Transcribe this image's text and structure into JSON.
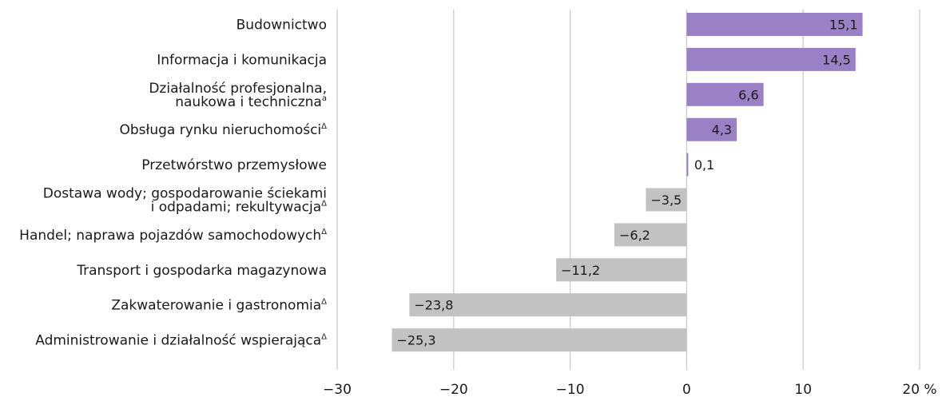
{
  "chart_data": {
    "type": "bar",
    "orientation": "horizontal",
    "categories": [
      {
        "lines": [
          "Budownictwo"
        ],
        "sup": ""
      },
      {
        "lines": [
          "Informacja i komunikacja"
        ],
        "sup": ""
      },
      {
        "lines": [
          "Działalność profesjonalna,",
          "naukowa i techniczna"
        ],
        "sup": "a"
      },
      {
        "lines": [
          "Obsługa rynku nieruchomości"
        ],
        "sup": "Δ"
      },
      {
        "lines": [
          "Przetwórstwo przemysłowe"
        ],
        "sup": ""
      },
      {
        "lines": [
          "Dostawa wody; gospodarowanie ściekami",
          "i odpadami; rekultywacja"
        ],
        "sup": "Δ"
      },
      {
        "lines": [
          "Handel; naprawa pojazdów samochodowych"
        ],
        "sup": "Δ"
      },
      {
        "lines": [
          "Transport i gospodarka magazynowa"
        ],
        "sup": ""
      },
      {
        "lines": [
          "Zakwaterowanie i gastronomia"
        ],
        "sup": "Δ"
      },
      {
        "lines": [
          "Administrowanie i działalność wspierająca"
        ],
        "sup": "Δ"
      }
    ],
    "values": [
      15.1,
      14.5,
      6.6,
      4.3,
      0.1,
      -3.5,
      -6.2,
      -11.2,
      -23.8,
      -25.3
    ],
    "value_labels": [
      "15,1",
      "14,5",
      "6,6",
      "4,3",
      "0,1",
      "−3,5",
      "−6,2",
      "−11,2",
      "−23,8",
      "−25,3"
    ],
    "xlim": [
      -30,
      20
    ],
    "xticks": [
      -30,
      -20,
      -10,
      0,
      10,
      20
    ],
    "xtick_labels": [
      "−30",
      "−20",
      "−10",
      "0",
      "10",
      "20 %"
    ],
    "colors": {
      "positive": "#9a80c4",
      "negative": "#c2c2c2",
      "grid": "#cccccc"
    },
    "grid": true
  }
}
